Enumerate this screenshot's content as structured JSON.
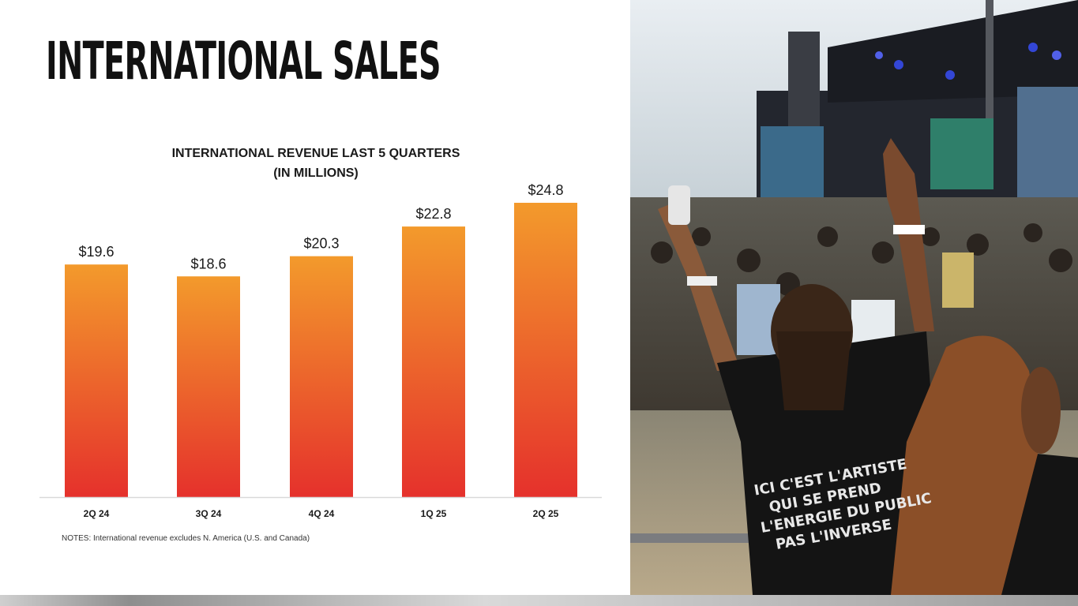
{
  "slide": {
    "title": "INTERNATIONAL SALES",
    "notes": "NOTES: International revenue excludes N. America (U.S. and Canada)"
  },
  "photo": {
    "description_icon": "concert-crowd-photo",
    "shirt_text": [
      "ICI C'EST L'ARTISTE",
      "QUI SE PREND",
      "L'ENERGIE DU PUBLIC",
      "PAS L'INVERSE"
    ]
  },
  "colors": {
    "bar_top": "#f39a2c",
    "bar_bottom": "#e5312c",
    "text": "#1a1a1a",
    "baseline": "#d9d9d9"
  },
  "chart_data": {
    "type": "bar",
    "title_lines": [
      "INTERNATIONAL REVENUE LAST 5 QUARTERS",
      "(IN MILLIONS)"
    ],
    "categories": [
      "2Q 24",
      "3Q 24",
      "4Q 24",
      "1Q 25",
      "2Q 25"
    ],
    "values": [
      19.6,
      18.6,
      20.3,
      22.8,
      24.8
    ],
    "value_labels": [
      "$19.6",
      "$18.6",
      "$20.3",
      "$22.8",
      "$24.8"
    ],
    "ylim": [
      0,
      24.8
    ],
    "grid": false,
    "legend": "none"
  }
}
